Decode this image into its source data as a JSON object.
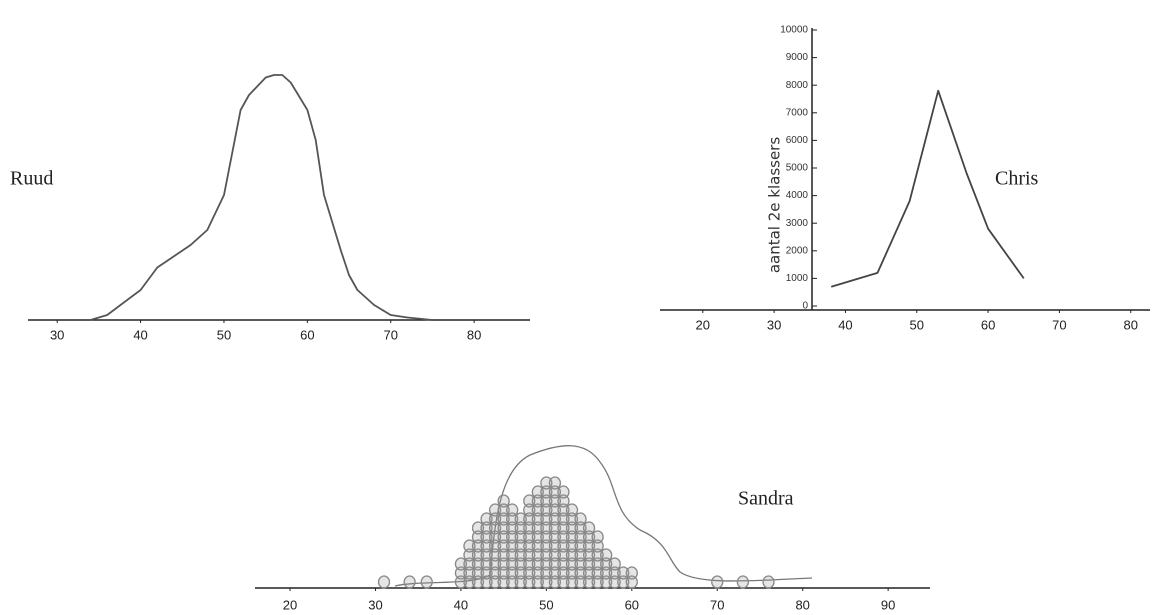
{
  "chart_data": [
    {
      "type": "line",
      "title": "Ruud",
      "x": [
        34,
        36,
        40,
        42,
        46,
        48,
        50,
        52,
        53,
        55,
        56,
        57,
        58,
        60,
        61,
        62,
        64,
        65,
        66,
        68,
        70,
        72,
        75
      ],
      "values": [
        0,
        2,
        12,
        21,
        30,
        36,
        50,
        84,
        90,
        97,
        98,
        98,
        95,
        84,
        72,
        50,
        28,
        18,
        12,
        6,
        2,
        1,
        0
      ],
      "color": "#555555",
      "xlim": [
        26.5,
        86.7
      ],
      "xticks": [
        30,
        40,
        50,
        60,
        70,
        80
      ],
      "ylim": [
        0,
        100
      ]
    },
    {
      "type": "line",
      "title": "Chris",
      "ylabel": "aantal 2e klassers",
      "x": [
        38,
        44.5,
        49,
        53,
        57,
        60,
        65
      ],
      "values": [
        700,
        1200,
        3800,
        7800,
        4800,
        2800,
        1000
      ],
      "color": "#444444",
      "xlim": [
        14,
        82.7
      ],
      "xticks": [
        20,
        30,
        40,
        50,
        60,
        70,
        80
      ],
      "ylim": [
        0,
        10000
      ],
      "yticks": [
        0,
        1000,
        2000,
        3000,
        4000,
        5000,
        6000,
        7000,
        8000,
        9000,
        10000
      ]
    },
    {
      "type": "dot",
      "title": "Sandra",
      "values": [
        31,
        34,
        36,
        40,
        40,
        40,
        41,
        41,
        41,
        41,
        41,
        42,
        42,
        42,
        42,
        42,
        42,
        42,
        43,
        43,
        43,
        43,
        43,
        43,
        43,
        43,
        44,
        44,
        44,
        44,
        44,
        44,
        44,
        44,
        44,
        45,
        45,
        45,
        45,
        45,
        45,
        45,
        45,
        45,
        45,
        46,
        46,
        46,
        46,
        46,
        46,
        46,
        46,
        46,
        47,
        47,
        47,
        47,
        47,
        47,
        47,
        47,
        48,
        48,
        48,
        48,
        48,
        48,
        48,
        48,
        48,
        48,
        49,
        49,
        49,
        49,
        49,
        49,
        49,
        49,
        49,
        49,
        49,
        50,
        50,
        50,
        50,
        50,
        50,
        50,
        50,
        50,
        50,
        50,
        50,
        51,
        51,
        51,
        51,
        51,
        51,
        51,
        51,
        51,
        51,
        51,
        51,
        52,
        52,
        52,
        52,
        52,
        52,
        52,
        52,
        52,
        52,
        52,
        53,
        53,
        53,
        53,
        53,
        53,
        53,
        53,
        53,
        54,
        54,
        54,
        54,
        54,
        54,
        54,
        54,
        55,
        55,
        55,
        55,
        55,
        55,
        55,
        56,
        56,
        56,
        56,
        56,
        56,
        57,
        57,
        57,
        57,
        58,
        58,
        58,
        59,
        59,
        60,
        60,
        70,
        73,
        76
      ],
      "color": "#888888",
      "xlim": [
        15.9,
        94.9
      ],
      "xticks": [
        20,
        30,
        40,
        50,
        60,
        70,
        80,
        90
      ]
    }
  ]
}
